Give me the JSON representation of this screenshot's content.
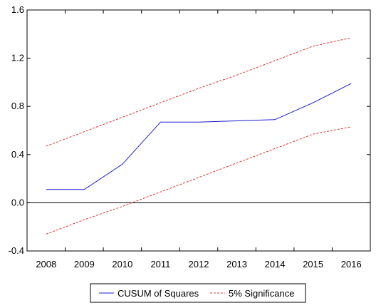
{
  "chart_data": {
    "type": "line",
    "title": "",
    "xlabel": "",
    "ylabel": "",
    "x": [
      "2008",
      "2009",
      "2010",
      "2011",
      "2012",
      "2013",
      "2014",
      "2015",
      "2016"
    ],
    "ylim": [
      -0.4,
      1.6
    ],
    "yticks": [
      "-0.4",
      "0.0",
      "0.4",
      "0.8",
      "1.2",
      "1.6"
    ],
    "zero_line": true,
    "grid": false,
    "legend_position": "bottom-center",
    "series": [
      {
        "name": "CUSUM of Squares",
        "style": "solid",
        "color": "#1a1acc",
        "values": [
          0.11,
          0.11,
          0.32,
          0.67,
          0.67,
          0.68,
          0.69,
          0.83,
          0.99
        ]
      },
      {
        "name": "5% Significance",
        "style": "dashed",
        "color": "#e03030",
        "values": [
          0.47,
          0.59,
          0.71,
          0.83,
          0.95,
          1.06,
          1.18,
          1.3,
          1.37
        ]
      },
      {
        "name": "",
        "style": "dashed",
        "color": "#e03030",
        "values": [
          -0.26,
          -0.14,
          -0.03,
          0.09,
          0.21,
          0.33,
          0.45,
          0.57,
          0.63
        ]
      }
    ]
  }
}
